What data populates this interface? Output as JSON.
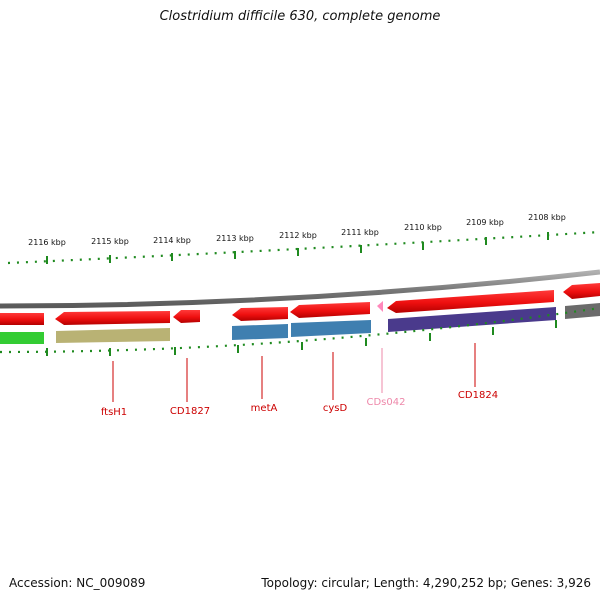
{
  "title": "Clostridium difficile 630, complete genome",
  "footer": {
    "accession": "Accession: NC_009089",
    "stats": "Topology: circular; Length: 4,290,252 bp; Genes: 3,926"
  },
  "scale_labels": [
    "2116 kbp",
    "2115 kbp",
    "2114 kbp",
    "2113 kbp",
    "2112 kbp",
    "2111 kbp",
    "2110 kbp",
    "2109 kbp",
    "2108 kbp"
  ],
  "gene_labels": [
    {
      "id": "ftsH1",
      "text": "ftsH1",
      "color": "#cc0000"
    },
    {
      "id": "CD1827",
      "text": "CD1827",
      "color": "#cc0000"
    },
    {
      "id": "metA",
      "text": "metA",
      "color": "#cc0000"
    },
    {
      "id": "cysD",
      "text": "cysD",
      "color": "#cc0000"
    },
    {
      "id": "CDs042",
      "text": "CDs042",
      "color": "#ee88aa"
    },
    {
      "id": "CD1824",
      "text": "CD1824",
      "color": "#cc0000"
    }
  ],
  "colors": {
    "backbone": "#8a8a8a",
    "cds": "#ee1111",
    "cds_faint": "#ff88bb",
    "ticks": "#1f8a1f",
    "feature_green": "#33cc33",
    "feature_olive": "#b9b274",
    "feature_blue": "#3f7fb0",
    "feature_purple": "#4a3a8c",
    "feature_gray": "#6b6b6b"
  }
}
